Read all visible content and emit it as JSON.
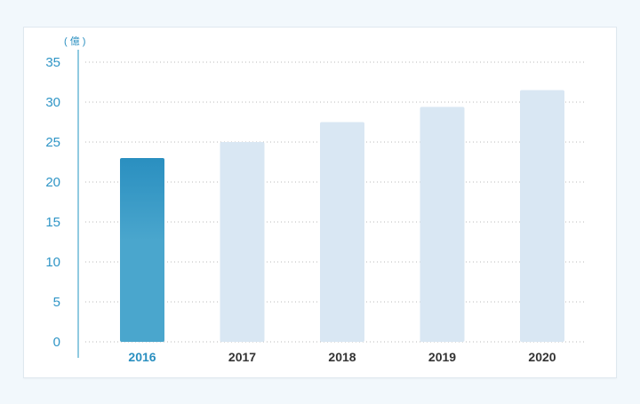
{
  "chart_data": {
    "type": "bar",
    "unit_label": "( 億 )",
    "categories": [
      "2016",
      "2017",
      "2018",
      "2019",
      "2020"
    ],
    "values": [
      23,
      25,
      27.5,
      29.4,
      31.5
    ],
    "highlight_index": 0,
    "ylim": [
      0,
      35
    ],
    "yticks": [
      0,
      5,
      10,
      15,
      20,
      25,
      30,
      35
    ],
    "grid": true,
    "colors": {
      "highlight_top": "#2a8fc0",
      "highlight_bottom": "#4aa6cd",
      "bar": "#d9e7f3",
      "axis": "#6cb8d6",
      "grid": "#b8b8b8"
    }
  }
}
